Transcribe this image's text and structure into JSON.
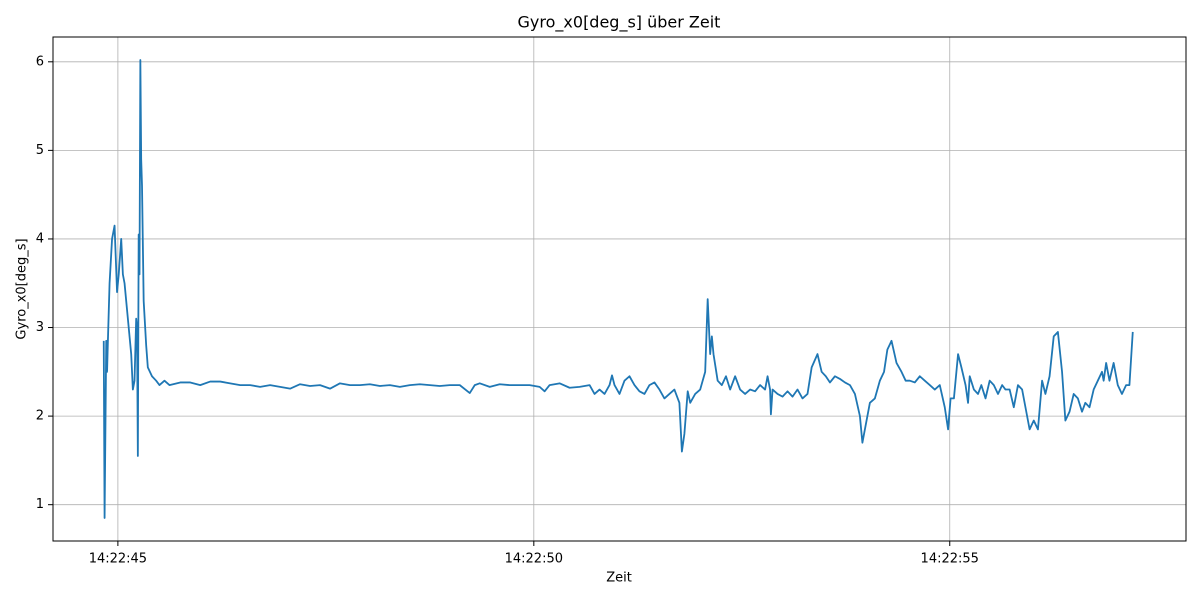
{
  "chart_data": {
    "type": "line",
    "title": "Gyro_x0[deg_s] über Zeit",
    "x_label": "Zeit",
    "y_label": "Gyro_x0[deg_s]",
    "grid": true,
    "xlim": [
      44.22,
      57.84
    ],
    "xticks": [
      {
        "value": 45,
        "label": "14:22:45"
      },
      {
        "value": 50,
        "label": "14:22:50"
      },
      {
        "value": 55,
        "label": "14:22:55"
      }
    ],
    "ylim": [
      0.59,
      6.28
    ],
    "yticks": [
      1,
      2,
      3,
      4,
      5,
      6
    ],
    "series": [
      {
        "color": "#1f77b4",
        "x": [
          44.83,
          44.84,
          44.86,
          44.87,
          44.88,
          44.9,
          44.93,
          44.96,
          44.99,
          45.01,
          45.04,
          45.06,
          45.08,
          45.12,
          45.16,
          45.18,
          45.2,
          45.22,
          45.23,
          45.24,
          45.25,
          45.26,
          45.27,
          45.28,
          45.29,
          45.31,
          45.34,
          45.36,
          45.41,
          45.46,
          45.5,
          45.56,
          45.62,
          45.75,
          45.87,
          45.99,
          46.11,
          46.23,
          46.35,
          46.47,
          46.59,
          46.71,
          46.83,
          46.95,
          47.07,
          47.19,
          47.31,
          47.43,
          47.55,
          47.67,
          47.79,
          47.91,
          48.03,
          48.15,
          48.27,
          48.39,
          48.51,
          48.63,
          48.75,
          48.87,
          48.99,
          49.11,
          49.23,
          49.29,
          49.35,
          49.47,
          49.59,
          49.71,
          49.83,
          49.95,
          50.07,
          50.13,
          50.19,
          50.31,
          50.43,
          50.55,
          50.67,
          50.73,
          50.79,
          50.85,
          50.91,
          50.94,
          50.97,
          51.03,
          51.09,
          51.15,
          51.21,
          51.27,
          51.33,
          51.39,
          51.45,
          51.51,
          51.57,
          51.63,
          51.69,
          51.75,
          51.78,
          51.81,
          51.85,
          51.88,
          51.94,
          52.0,
          52.06,
          52.09,
          52.12,
          52.14,
          52.16,
          52.21,
          52.26,
          52.31,
          52.36,
          52.42,
          52.48,
          52.54,
          52.6,
          52.66,
          52.72,
          52.78,
          52.81,
          52.84,
          52.85,
          52.87,
          52.93,
          52.99,
          53.05,
          53.11,
          53.17,
          53.23,
          53.29,
          53.34,
          53.41,
          53.46,
          53.51,
          53.56,
          53.62,
          53.68,
          53.74,
          53.8,
          53.86,
          53.92,
          53.95,
          53.99,
          54.04,
          54.1,
          54.16,
          54.21,
          54.25,
          54.3,
          54.36,
          54.42,
          54.47,
          54.52,
          54.58,
          54.64,
          54.7,
          54.76,
          54.82,
          54.88,
          54.94,
          54.98,
          55.01,
          55.05,
          55.1,
          55.14,
          55.19,
          55.22,
          55.24,
          55.29,
          55.34,
          55.38,
          55.43,
          55.48,
          55.53,
          55.58,
          55.63,
          55.67,
          55.72,
          55.77,
          55.82,
          55.87,
          55.91,
          55.96,
          56.01,
          56.06,
          56.11,
          56.15,
          56.2,
          56.25,
          56.3,
          56.35,
          56.39,
          56.44,
          56.49,
          56.54,
          56.59,
          56.63,
          56.68,
          56.73,
          56.78,
          56.83,
          56.85,
          56.88,
          56.92,
          56.97,
          57.02,
          57.07,
          57.12,
          57.16,
          57.2
        ],
        "values": [
          2.85,
          0.85,
          2.85,
          2.5,
          2.85,
          3.5,
          4.0,
          4.15,
          3.4,
          3.6,
          4.0,
          3.6,
          3.5,
          3.1,
          2.7,
          2.3,
          2.4,
          3.1,
          3.0,
          1.55,
          4.05,
          3.6,
          6.02,
          4.9,
          4.6,
          3.3,
          2.8,
          2.55,
          2.45,
          2.4,
          2.35,
          2.4,
          2.35,
          2.38,
          2.38,
          2.35,
          2.39,
          2.39,
          2.37,
          2.35,
          2.35,
          2.33,
          2.35,
          2.33,
          2.31,
          2.36,
          2.34,
          2.35,
          2.31,
          2.37,
          2.35,
          2.35,
          2.36,
          2.34,
          2.35,
          2.33,
          2.35,
          2.36,
          2.35,
          2.34,
          2.35,
          2.35,
          2.26,
          2.35,
          2.37,
          2.33,
          2.36,
          2.35,
          2.35,
          2.35,
          2.33,
          2.28,
          2.35,
          2.37,
          2.32,
          2.33,
          2.35,
          2.25,
          2.3,
          2.25,
          2.35,
          2.46,
          2.35,
          2.25,
          2.4,
          2.45,
          2.35,
          2.28,
          2.25,
          2.35,
          2.38,
          2.3,
          2.2,
          2.25,
          2.3,
          2.15,
          1.6,
          1.8,
          2.28,
          2.15,
          2.25,
          2.3,
          2.5,
          3.32,
          2.7,
          2.9,
          2.7,
          2.4,
          2.35,
          2.45,
          2.3,
          2.45,
          2.3,
          2.25,
          2.3,
          2.28,
          2.35,
          2.3,
          2.45,
          2.3,
          2.02,
          2.3,
          2.25,
          2.22,
          2.28,
          2.22,
          2.3,
          2.2,
          2.25,
          2.55,
          2.7,
          2.5,
          2.45,
          2.38,
          2.45,
          2.42,
          2.38,
          2.35,
          2.25,
          2.0,
          1.7,
          1.9,
          2.15,
          2.2,
          2.4,
          2.5,
          2.75,
          2.85,
          2.6,
          2.5,
          2.4,
          2.4,
          2.38,
          2.45,
          2.4,
          2.35,
          2.3,
          2.35,
          2.1,
          1.85,
          2.2,
          2.2,
          2.7,
          2.55,
          2.35,
          2.15,
          2.45,
          2.3,
          2.25,
          2.35,
          2.2,
          2.4,
          2.35,
          2.25,
          2.35,
          2.3,
          2.3,
          2.1,
          2.35,
          2.3,
          2.1,
          1.85,
          1.95,
          1.85,
          2.4,
          2.25,
          2.45,
          2.9,
          2.95,
          2.5,
          1.95,
          2.05,
          2.25,
          2.2,
          2.05,
          2.15,
          2.1,
          2.3,
          2.4,
          2.5,
          2.4,
          2.6,
          2.4,
          2.6,
          2.35,
          2.25,
          2.35,
          2.35,
          2.95
        ]
      }
    ]
  }
}
